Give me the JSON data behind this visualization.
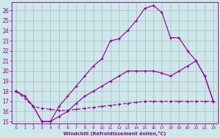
{
  "xlabel": "Windchill (Refroidissement éolien,°C)",
  "bg_color": "#cce8e8",
  "grid_color": "#b0b0cc",
  "line_color": "#990099",
  "xlim": [
    -0.5,
    23.5
  ],
  "ylim": [
    14.8,
    26.8
  ],
  "yticks": [
    15,
    16,
    17,
    18,
    19,
    20,
    21,
    22,
    23,
    24,
    25,
    26
  ],
  "xticks": [
    0,
    1,
    2,
    3,
    4,
    5,
    6,
    7,
    8,
    9,
    10,
    11,
    12,
    13,
    14,
    15,
    16,
    17,
    18,
    19,
    20,
    21,
    22,
    23
  ],
  "line1_x": [
    0,
    1,
    2,
    3,
    4,
    5,
    6,
    7,
    8,
    9,
    10,
    11,
    12,
    13,
    14,
    15,
    16,
    17,
    18,
    19,
    20,
    21,
    22,
    23
  ],
  "line1_y": [
    18.0,
    17.5,
    16.5,
    15.0,
    15.0,
    16.5,
    17.5,
    18.5,
    19.5,
    20.5,
    21.2,
    23.0,
    23.2,
    24.0,
    25.0,
    26.2,
    26.5,
    25.8,
    23.3,
    23.3,
    22.0,
    21.0,
    19.5,
    17.0
  ],
  "line2_x": [
    0,
    1,
    2,
    3,
    4,
    5,
    6,
    7,
    8,
    9,
    10,
    11,
    12,
    13,
    14,
    15,
    16,
    17,
    18,
    19,
    20,
    21,
    22,
    23
  ],
  "line2_y": [
    18.0,
    17.5,
    16.5,
    15.0,
    15.0,
    15.5,
    16.0,
    16.8,
    17.5,
    18.0,
    18.5,
    19.0,
    19.5,
    20.0,
    20.0,
    20.0,
    20.0,
    19.8,
    19.5,
    20.0,
    20.5,
    21.0,
    19.5,
    17.0
  ],
  "line3_x": [
    0,
    2,
    3,
    4,
    5,
    6,
    7,
    8,
    9,
    10,
    11,
    12,
    13,
    14,
    15,
    16,
    17,
    18,
    19,
    20,
    21,
    22,
    23
  ],
  "line3_y": [
    18.0,
    16.5,
    16.3,
    16.2,
    16.1,
    16.1,
    16.2,
    16.3,
    16.4,
    16.5,
    16.6,
    16.7,
    16.8,
    16.9,
    17.0,
    17.0,
    17.0,
    17.0,
    17.0,
    17.0,
    17.0,
    17.0,
    17.0
  ]
}
